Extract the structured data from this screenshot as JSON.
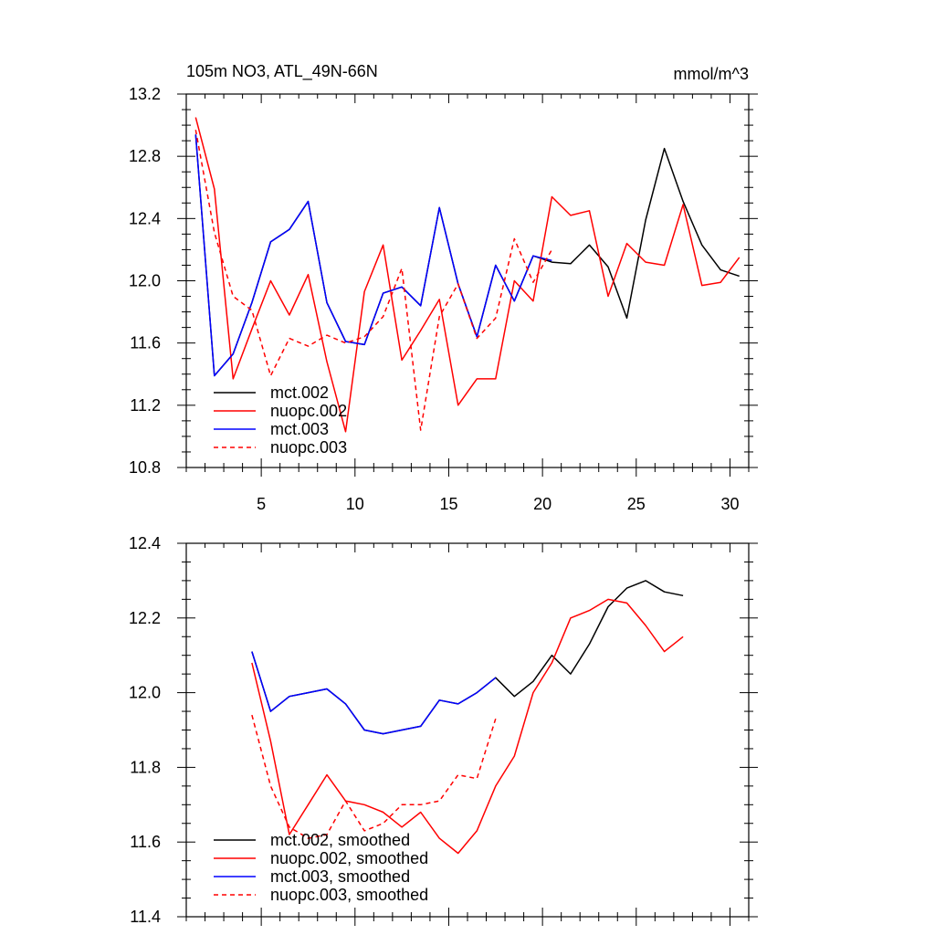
{
  "chart_data": [
    {
      "type": "line",
      "title": "105m NO3, ATL_49N-66N",
      "units": "mmol/m^3",
      "xlabel": "",
      "ylabel": "",
      "xlim": [
        1,
        31
      ],
      "ylim": [
        10.8,
        13.2
      ],
      "x_ticks": [
        5,
        10,
        15,
        20,
        25,
        30
      ],
      "y_ticks": [
        10.8,
        11.2,
        11.6,
        12.0,
        12.4,
        12.8,
        13.2
      ],
      "y_tick_labels": [
        "10.8",
        "11.2",
        "11.6",
        "12.0",
        "12.4",
        "12.8",
        "13.2"
      ],
      "x_tick_labels": [
        "5",
        "10",
        "15",
        "20",
        "25",
        "30"
      ],
      "legend_position": "bottom-left",
      "series": [
        {
          "name": "mct.002",
          "color": "#000000",
          "dash": "solid",
          "x": [
            1.5,
            2.5,
            3.5,
            4.5,
            5.5,
            6.5,
            7.5,
            8.5,
            9.5,
            10.5,
            11.5,
            12.5,
            13.5,
            14.5,
            15.5,
            16.5,
            17.5,
            18.5,
            19.5,
            20.5,
            21.5,
            22.5,
            23.5,
            24.5,
            25.5,
            26.5,
            27.5,
            28.5,
            29.5,
            30.5
          ],
          "y": [
            12.94,
            11.39,
            11.53,
            11.86,
            12.25,
            12.33,
            12.51,
            11.86,
            11.61,
            11.59,
            11.92,
            11.96,
            11.84,
            12.47,
            11.98,
            11.64,
            12.1,
            11.87,
            12.16,
            12.12,
            12.11,
            12.23,
            12.09,
            11.76,
            12.39,
            12.85,
            12.51,
            12.23,
            12.07,
            12.03
          ]
        },
        {
          "name": "nuopc.002",
          "color": "#ff0000",
          "dash": "solid",
          "x": [
            1.5,
            2.5,
            3.5,
            4.5,
            5.5,
            6.5,
            7.5,
            8.5,
            9.5,
            10.5,
            11.5,
            12.5,
            13.5,
            14.5,
            15.5,
            16.5,
            17.5,
            18.5,
            19.5,
            20.5,
            21.5,
            22.5,
            23.5,
            24.5,
            25.5,
            26.5,
            27.5,
            28.5,
            29.5,
            30.5
          ],
          "y": [
            13.05,
            12.59,
            11.37,
            11.69,
            12.0,
            11.78,
            12.04,
            11.48,
            11.03,
            11.93,
            12.23,
            11.49,
            11.68,
            11.88,
            11.2,
            11.37,
            11.37,
            12.0,
            11.87,
            12.54,
            12.42,
            12.45,
            11.9,
            12.24,
            12.12,
            12.1,
            12.49,
            11.97,
            11.99,
            12.15
          ]
        },
        {
          "name": "mct.003",
          "color": "#0000ff",
          "dash": "solid",
          "x": [
            1.5,
            2.5,
            3.5,
            4.5,
            5.5,
            6.5,
            7.5,
            8.5,
            9.5,
            10.5,
            11.5,
            12.5,
            13.5,
            14.5,
            15.5,
            16.5,
            17.5,
            18.5,
            19.5,
            20.5
          ],
          "y": [
            12.94,
            11.39,
            11.53,
            11.86,
            12.25,
            12.33,
            12.51,
            11.86,
            11.61,
            11.59,
            11.92,
            11.96,
            11.84,
            12.47,
            11.98,
            11.64,
            12.1,
            11.87,
            12.16,
            12.13
          ]
        },
        {
          "name": "nuopc.003",
          "color": "#ff0000",
          "dash": "dashed",
          "x": [
            1.5,
            2.5,
            3.5,
            4.5,
            5.5,
            6.5,
            7.5,
            8.5,
            9.5,
            10.5,
            11.5,
            12.5,
            13.5,
            14.5,
            15.5,
            16.5,
            17.5,
            18.5,
            19.5,
            20.5
          ],
          "y": [
            12.97,
            12.31,
            11.9,
            11.81,
            11.39,
            11.63,
            11.58,
            11.65,
            11.6,
            11.64,
            11.77,
            12.08,
            11.04,
            11.77,
            11.98,
            11.63,
            11.76,
            12.27,
            11.99,
            12.2
          ]
        }
      ]
    },
    {
      "type": "line",
      "title": "",
      "xlabel": "",
      "ylabel": "",
      "xlim": [
        1,
        31
      ],
      "ylim": [
        11.4,
        12.4
      ],
      "x_ticks": [
        5,
        10,
        15,
        20,
        25,
        30
      ],
      "y_ticks": [
        11.4,
        11.6,
        11.8,
        12.0,
        12.2,
        12.4
      ],
      "y_tick_labels": [
        "11.4",
        "11.6",
        "11.8",
        "12.0",
        "12.2",
        "12.4"
      ],
      "legend_position": "bottom-left",
      "series": [
        {
          "name": "mct.002, smoothed",
          "color": "#000000",
          "dash": "solid",
          "x": [
            4.5,
            5.5,
            6.5,
            7.5,
            8.5,
            9.5,
            10.5,
            11.5,
            12.5,
            13.5,
            14.5,
            15.5,
            16.5,
            17.5,
            18.5,
            19.5,
            20.5,
            21.5,
            22.5,
            23.5,
            24.5,
            25.5,
            26.5,
            27.5
          ],
          "y": [
            12.11,
            11.95,
            11.99,
            12.0,
            12.01,
            11.97,
            11.9,
            11.89,
            11.9,
            11.91,
            11.98,
            11.97,
            12.0,
            12.04,
            11.99,
            12.03,
            12.1,
            12.05,
            12.13,
            12.23,
            12.28,
            12.3,
            12.27,
            12.26
          ]
        },
        {
          "name": "nuopc.002, smoothed",
          "color": "#ff0000",
          "dash": "solid",
          "x": [
            4.5,
            5.5,
            6.5,
            7.5,
            8.5,
            9.5,
            10.5,
            11.5,
            12.5,
            13.5,
            14.5,
            15.5,
            16.5,
            17.5,
            18.5,
            19.5,
            20.5,
            21.5,
            22.5,
            23.5,
            24.5,
            25.5,
            26.5,
            27.5
          ],
          "y": [
            12.08,
            11.87,
            11.62,
            11.7,
            11.78,
            11.71,
            11.7,
            11.68,
            11.64,
            11.68,
            11.61,
            11.57,
            11.63,
            11.75,
            11.83,
            12.0,
            12.08,
            12.2,
            12.22,
            12.25,
            12.24,
            12.18,
            12.11,
            12.15
          ]
        },
        {
          "name": "mct.003, smoothed",
          "color": "#0000ff",
          "dash": "solid",
          "x": [
            4.5,
            5.5,
            6.5,
            7.5,
            8.5,
            9.5,
            10.5,
            11.5,
            12.5,
            13.5,
            14.5,
            15.5,
            16.5,
            17.5
          ],
          "y": [
            12.11,
            11.95,
            11.99,
            12.0,
            12.01,
            11.97,
            11.9,
            11.89,
            11.9,
            11.91,
            11.98,
            11.97,
            12.0,
            12.04
          ]
        },
        {
          "name": "nuopc.003, smoothed",
          "color": "#ff0000",
          "dash": "dashed",
          "x": [
            4.5,
            5.5,
            6.5,
            7.5,
            8.5,
            9.5,
            10.5,
            11.5,
            12.5,
            13.5,
            14.5,
            15.5,
            16.5,
            17.5
          ],
          "y": [
            11.94,
            11.75,
            11.64,
            11.61,
            11.62,
            11.71,
            11.63,
            11.65,
            11.7,
            11.7,
            11.71,
            11.78,
            11.77,
            11.93
          ]
        }
      ]
    }
  ]
}
